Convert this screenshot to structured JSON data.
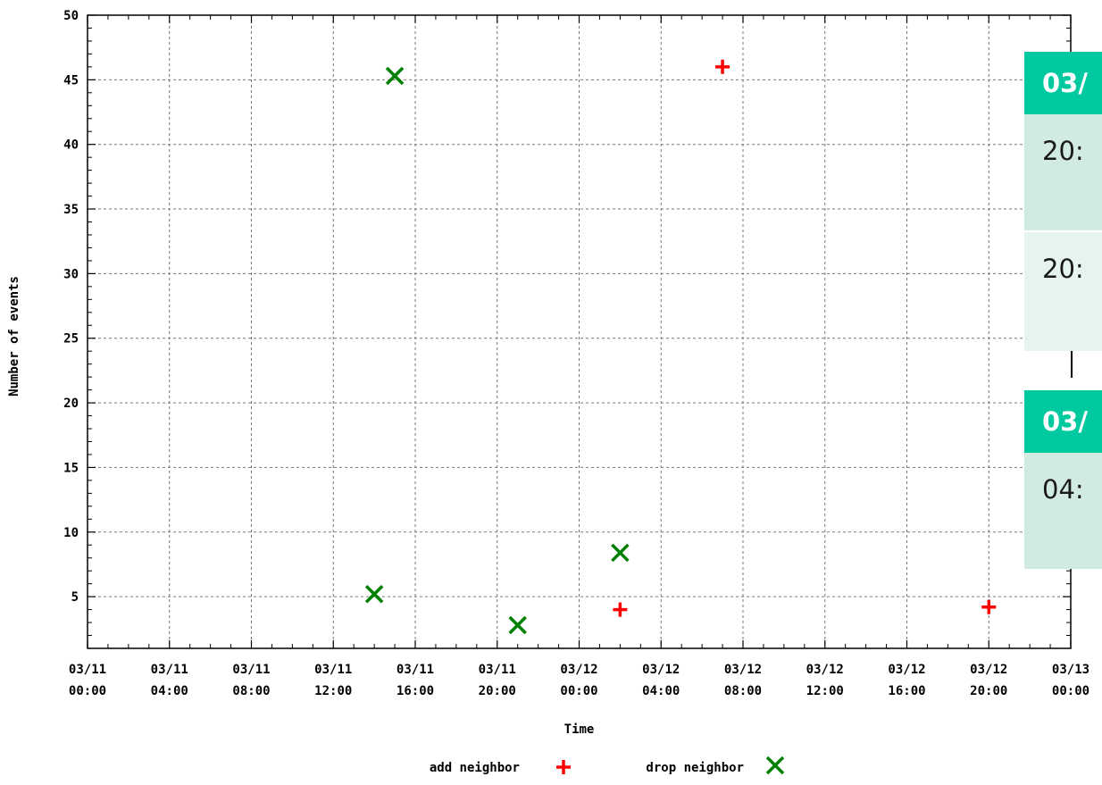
{
  "chart_data": {
    "type": "scatter",
    "xlabel": "Time",
    "ylabel": "Number of events",
    "xlim": [
      "03/11 00:00",
      "03/13 00:00"
    ],
    "ylim": [
      1,
      50
    ],
    "grid": true,
    "legend_position": "bottom",
    "y_ticks": [
      5,
      10,
      15,
      20,
      25,
      30,
      35,
      40,
      45,
      50
    ],
    "x_ticks": [
      {
        "date": "03/11",
        "time": "00:00"
      },
      {
        "date": "03/11",
        "time": "04:00"
      },
      {
        "date": "03/11",
        "time": "08:00"
      },
      {
        "date": "03/11",
        "time": "12:00"
      },
      {
        "date": "03/11",
        "time": "16:00"
      },
      {
        "date": "03/11",
        "time": "20:00"
      },
      {
        "date": "03/12",
        "time": "00:00"
      },
      {
        "date": "03/12",
        "time": "04:00"
      },
      {
        "date": "03/12",
        "time": "08:00"
      },
      {
        "date": "03/12",
        "time": "12:00"
      },
      {
        "date": "03/12",
        "time": "16:00"
      },
      {
        "date": "03/12",
        "time": "20:00"
      },
      {
        "date": "03/13",
        "time": "00:00"
      }
    ],
    "series": [
      {
        "name": "add neighbor",
        "marker": "plus",
        "color": "#ff0000",
        "points": [
          {
            "x": "03/12 07:00",
            "y": 46
          },
          {
            "x": "03/12 02:00",
            "y": 4
          },
          {
            "x": "03/12 20:00",
            "y": 4.2
          }
        ]
      },
      {
        "name": "drop neighbor",
        "marker": "cross",
        "color": "#008000",
        "points": [
          {
            "x": "03/11 15:00",
            "y": 45.3
          },
          {
            "x": "03/11 14:00",
            "y": 5.2
          },
          {
            "x": "03/11 21:00",
            "y": 2.8
          },
          {
            "x": "03/12 02:00",
            "y": 8.4
          }
        ]
      }
    ]
  },
  "tooltip": {
    "group1_header": "03/",
    "group1_rows": [
      "20:",
      "20:"
    ],
    "group2_header": "03/",
    "group2_rows": [
      "04:"
    ]
  }
}
